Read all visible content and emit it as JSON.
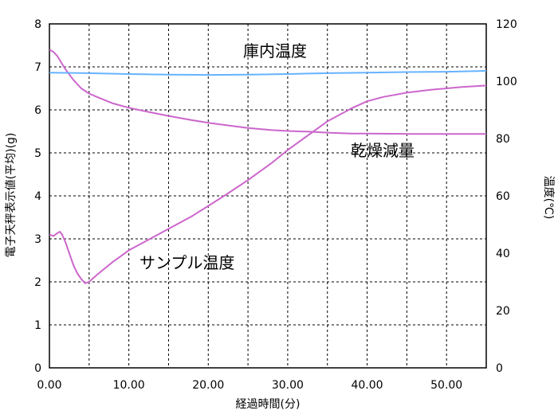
{
  "chart_data": {
    "type": "line",
    "title": "",
    "xlabel": "経過時間(分)",
    "ylabel_left": "電子天秤表示値(平均)(g)",
    "ylabel_right": "温度(℃)",
    "xlim": [
      0,
      55
    ],
    "ylim_left": [
      0,
      8
    ],
    "ylim_right": [
      0,
      120
    ],
    "grid": true,
    "x_ticks": [
      "0.00",
      "10.00",
      "20.00",
      "30.00",
      "40.00",
      "50.00"
    ],
    "y_left_ticks": [
      "0",
      "1",
      "2",
      "3",
      "4",
      "5",
      "6",
      "7",
      "8"
    ],
    "y_right_ticks": [
      "0",
      "20",
      "40",
      "60",
      "80",
      "100",
      "120"
    ],
    "annotations": {
      "chamber_temp": "庫内温度",
      "drying_loss": "乾燥減量",
      "sample_temp": "サンプル温度"
    },
    "series": [
      {
        "name": "乾燥減量",
        "axis": "left",
        "color": "#cc66cc",
        "x": [
          0,
          0.5,
          1,
          1.5,
          2,
          3,
          4,
          5,
          6,
          8,
          10,
          12,
          15,
          18,
          20,
          22,
          25,
          28,
          30,
          33,
          35,
          38,
          40,
          45,
          50,
          55
        ],
        "y": [
          7.4,
          7.35,
          7.25,
          7.1,
          6.95,
          6.7,
          6.5,
          6.38,
          6.3,
          6.15,
          6.05,
          5.97,
          5.86,
          5.76,
          5.7,
          5.65,
          5.58,
          5.53,
          5.51,
          5.49,
          5.47,
          5.45,
          5.45,
          5.44,
          5.44,
          5.44
        ]
      },
      {
        "name": "庫内温度",
        "axis": "right",
        "color": "#66b3ff",
        "x": [
          0,
          5,
          10,
          15,
          20,
          25,
          30,
          35,
          40,
          45,
          50,
          55
        ],
        "y": [
          103,
          102.8,
          102.5,
          102.3,
          102.2,
          102.3,
          102.5,
          102.8,
          103,
          103.2,
          103.3,
          103.6
        ]
      },
      {
        "name": "サンプル温度",
        "axis": "right",
        "color": "#cc66cc",
        "x": [
          0,
          0.5,
          1,
          1.3,
          1.6,
          2,
          2.5,
          3,
          3.5,
          4,
          4.5,
          5,
          6,
          8,
          10,
          12,
          15,
          18,
          20,
          22,
          25,
          28,
          30,
          33,
          35,
          38,
          40,
          42,
          45,
          48,
          50,
          52,
          55
        ],
        "y": [
          46.5,
          46,
          47,
          47.5,
          46.5,
          44,
          40,
          36,
          33,
          31,
          29.5,
          30,
          32.5,
          37,
          41,
          44,
          48.5,
          53,
          56.5,
          60,
          65.5,
          71.5,
          76,
          82,
          86,
          90.5,
          93,
          94.5,
          96,
          97,
          97.5,
          98,
          98.5
        ]
      }
    ]
  }
}
